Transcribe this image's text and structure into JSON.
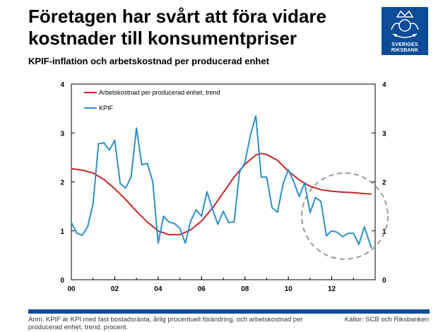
{
  "header": {
    "title": "Företagen har svårt att föra vidare kostnader till konsumentpriser",
    "subtitle": "KPIF-inflation och arbetskostnad per producerad enhet"
  },
  "logo": {
    "line1": "SVERIGES",
    "line2": "RIKSBANK"
  },
  "footer": {
    "note": "Anm. KPIF är KPI med fast bostadsränta, årlig procentuell förändring, och arbetskostnad per producerad enhet, trend, procent.",
    "source": "Källor: SCB och Riksbanken"
  },
  "colors": {
    "trend": "#c0272d",
    "kpif": "#2e8ec8",
    "brand": "#0a4c97",
    "circle": "#999999"
  },
  "chart_data": {
    "type": "line",
    "xlim": [
      2000,
      2014
    ],
    "ylim": [
      0,
      4
    ],
    "x_ticks": [
      {
        "value": 2000,
        "label": "00"
      },
      {
        "value": 2002,
        "label": "02"
      },
      {
        "value": 2004,
        "label": "04"
      },
      {
        "value": 2006,
        "label": "06"
      },
      {
        "value": 2008,
        "label": "08"
      },
      {
        "value": 2010,
        "label": "10"
      },
      {
        "value": 2012,
        "label": "12"
      }
    ],
    "y_ticks": [
      {
        "value": 0,
        "label": "0"
      },
      {
        "value": 1,
        "label": "1"
      },
      {
        "value": 2,
        "label": "2"
      },
      {
        "value": 3,
        "label": "3"
      },
      {
        "value": 4,
        "label": "4"
      }
    ],
    "legend_position": "top-left",
    "highlight_circle": {
      "center": [
        2012.6,
        1.3
      ],
      "radius_y": 0.88
    },
    "series": [
      {
        "name": "Arbetskostnad per producerad enhet, trend",
        "color": "#c0272d",
        "points": [
          [
            2000.0,
            2.27
          ],
          [
            2000.5,
            2.24
          ],
          [
            2001.0,
            2.18
          ],
          [
            2001.5,
            2.05
          ],
          [
            2002.0,
            1.86
          ],
          [
            2002.5,
            1.64
          ],
          [
            2003.0,
            1.4
          ],
          [
            2003.5,
            1.18
          ],
          [
            2004.0,
            1.0
          ],
          [
            2004.5,
            0.92
          ],
          [
            2005.0,
            0.92
          ],
          [
            2005.5,
            1.02
          ],
          [
            2006.0,
            1.2
          ],
          [
            2006.5,
            1.46
          ],
          [
            2007.0,
            1.78
          ],
          [
            2007.5,
            2.1
          ],
          [
            2008.0,
            2.36
          ],
          [
            2008.5,
            2.55
          ],
          [
            2008.75,
            2.58
          ],
          [
            2009.0,
            2.56
          ],
          [
            2009.5,
            2.44
          ],
          [
            2010.0,
            2.22
          ],
          [
            2010.5,
            2.04
          ],
          [
            2011.0,
            1.91
          ],
          [
            2011.5,
            1.84
          ],
          [
            2012.0,
            1.81
          ],
          [
            2012.5,
            1.79
          ],
          [
            2013.0,
            1.78
          ],
          [
            2013.5,
            1.76
          ],
          [
            2013.83,
            1.75
          ]
        ]
      },
      {
        "name": "KPIF",
        "color": "#2e8ec8",
        "points": [
          [
            2000.0,
            1.17
          ],
          [
            2000.25,
            0.95
          ],
          [
            2000.5,
            0.91
          ],
          [
            2000.75,
            1.08
          ],
          [
            2001.0,
            1.55
          ],
          [
            2001.25,
            2.78
          ],
          [
            2001.5,
            2.8
          ],
          [
            2001.75,
            2.65
          ],
          [
            2002.0,
            2.85
          ],
          [
            2002.25,
            1.97
          ],
          [
            2002.5,
            1.87
          ],
          [
            2002.75,
            2.1
          ],
          [
            2003.0,
            3.1
          ],
          [
            2003.25,
            2.35
          ],
          [
            2003.5,
            2.38
          ],
          [
            2003.75,
            2.0
          ],
          [
            2004.0,
            0.75
          ],
          [
            2004.25,
            1.3
          ],
          [
            2004.5,
            1.18
          ],
          [
            2004.75,
            1.15
          ],
          [
            2005.0,
            1.05
          ],
          [
            2005.25,
            0.75
          ],
          [
            2005.5,
            1.2
          ],
          [
            2005.75,
            1.43
          ],
          [
            2006.0,
            1.3
          ],
          [
            2006.25,
            1.8
          ],
          [
            2006.5,
            1.45
          ],
          [
            2006.75,
            1.13
          ],
          [
            2007.0,
            1.4
          ],
          [
            2007.25,
            1.17
          ],
          [
            2007.5,
            1.18
          ],
          [
            2007.75,
            2.2
          ],
          [
            2008.0,
            2.4
          ],
          [
            2008.25,
            2.95
          ],
          [
            2008.5,
            3.35
          ],
          [
            2008.75,
            2.1
          ],
          [
            2009.0,
            2.1
          ],
          [
            2009.25,
            1.47
          ],
          [
            2009.5,
            1.38
          ],
          [
            2009.75,
            1.95
          ],
          [
            2010.0,
            2.25
          ],
          [
            2010.25,
            2.0
          ],
          [
            2010.5,
            1.7
          ],
          [
            2010.75,
            1.98
          ],
          [
            2011.0,
            1.37
          ],
          [
            2011.25,
            1.68
          ],
          [
            2011.5,
            1.6
          ],
          [
            2011.75,
            0.9
          ],
          [
            2012.0,
            1.0
          ],
          [
            2012.25,
            0.97
          ],
          [
            2012.5,
            0.88
          ],
          [
            2012.75,
            0.95
          ],
          [
            2013.0,
            0.95
          ],
          [
            2013.25,
            0.72
          ],
          [
            2013.5,
            1.08
          ],
          [
            2013.83,
            0.65
          ]
        ]
      }
    ]
  }
}
